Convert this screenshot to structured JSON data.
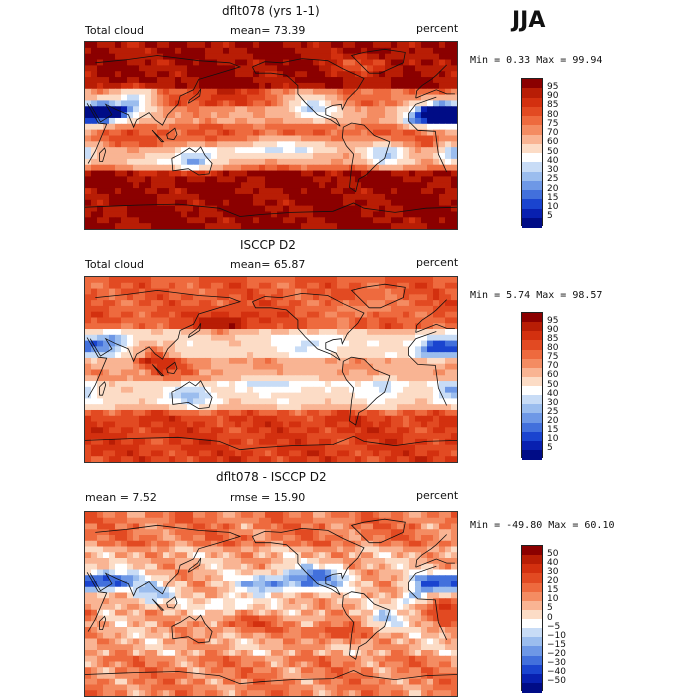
{
  "season": "JJA",
  "panels": [
    {
      "id": "model",
      "title": "dflt078 (yrs 1-1)",
      "left_label": "Total cloud",
      "mid_label": "mean=  73.39",
      "right_label": "percent",
      "minmax": "Min =   0.33 Max =  99.94",
      "scheme": "abs"
    },
    {
      "id": "obs",
      "title": "ISCCP D2",
      "left_label": "Total cloud",
      "mid_label": "mean=  65.87",
      "right_label": "percent",
      "minmax": "Min =   5.74 Max =  98.57",
      "scheme": "abs"
    },
    {
      "id": "diff",
      "title": "dflt078 - ISCCP D2",
      "left_label": "mean =   7.52",
      "mid_label": "rmse =  15.90",
      "right_label": "percent",
      "minmax": "Min = -49.80 Max =  60.10",
      "scheme": "diff"
    }
  ],
  "colorbars": {
    "abs": {
      "ticks": [
        "95",
        "90",
        "85",
        "80",
        "75",
        "70",
        "60",
        "50",
        "40",
        "30",
        "25",
        "20",
        "15",
        "10",
        "5"
      ],
      "colors": [
        "#8b0000",
        "#b81d05",
        "#d3300f",
        "#e24a22",
        "#ee6a3e",
        "#f48c62",
        "#f9b493",
        "#fcdcc6",
        "#ffffff",
        "#c8dcf6",
        "#9bbdee",
        "#6e98e6",
        "#4270dc",
        "#1a44cf",
        "#0820b0",
        "#000c86"
      ]
    },
    "diff": {
      "ticks": [
        "50",
        "40",
        "30",
        "20",
        "15",
        "10",
        "5",
        "0",
        "−5",
        "−10",
        "−15",
        "−20",
        "−30",
        "−40",
        "−50"
      ],
      "colors": [
        "#8b0000",
        "#b81d05",
        "#d3300f",
        "#e24a22",
        "#ee6a3e",
        "#f48c62",
        "#f9b493",
        "#fcdcc6",
        "#ffffff",
        "#c8dcf6",
        "#9bbdee",
        "#6e98e6",
        "#4270dc",
        "#1a44cf",
        "#0820b0",
        "#000c86"
      ]
    }
  },
  "chart_data": [
    {
      "type": "heatmap",
      "title": "dflt078 (yrs 1-1)",
      "variable": "Total cloud",
      "units": "percent",
      "mean": 73.39,
      "min": 0.33,
      "max": 99.94,
      "levels": [
        5,
        10,
        15,
        20,
        25,
        30,
        40,
        50,
        60,
        70,
        75,
        80,
        85,
        90,
        95
      ]
    },
    {
      "type": "heatmap",
      "title": "ISCCP D2",
      "variable": "Total cloud",
      "units": "percent",
      "mean": 65.87,
      "min": 5.74,
      "max": 98.57,
      "levels": [
        5,
        10,
        15,
        20,
        25,
        30,
        40,
        50,
        60,
        70,
        75,
        80,
        85,
        90,
        95
      ]
    },
    {
      "type": "heatmap",
      "title": "dflt078 - ISCCP D2",
      "units": "percent",
      "mean": 7.52,
      "rmse": 15.9,
      "min": -49.8,
      "max": 60.1,
      "levels": [
        -50,
        -40,
        -30,
        -20,
        -15,
        -10,
        -5,
        0,
        5,
        10,
        15,
        20,
        30,
        40,
        50
      ]
    }
  ]
}
